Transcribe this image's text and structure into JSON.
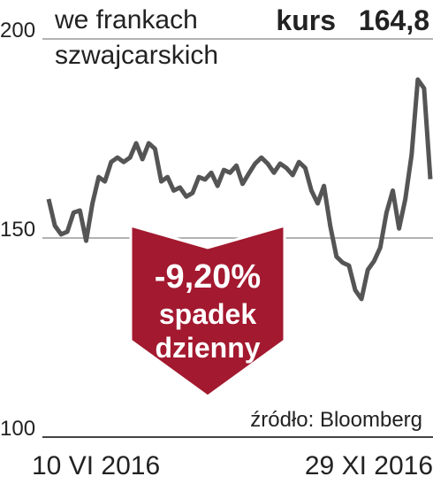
{
  "chart_data": {
    "type": "line",
    "title_lines": [
      "we frankach",
      "szwajcarskich"
    ],
    "price_label": "kurs",
    "price": "164,8",
    "badge": [
      "-9,20%",
      "spadek",
      "dzienny"
    ],
    "source": "źródło: Bloomberg",
    "categories": [
      "10 VI 2016",
      null,
      null,
      null,
      null,
      null,
      null,
      null,
      null,
      null,
      null,
      null,
      null,
      null,
      null,
      null,
      null,
      null,
      null,
      null,
      null,
      null,
      null,
      null,
      null,
      null,
      null,
      null,
      null,
      null,
      null,
      null,
      null,
      null,
      null,
      null,
      null,
      null,
      null,
      null,
      null,
      null,
      null,
      null,
      null,
      null,
      null,
      null,
      null,
      null,
      null,
      null,
      null,
      null,
      null,
      null,
      null,
      null,
      null,
      null,
      null,
      "29 XI 2016"
    ],
    "series": [
      {
        "color": "#555555",
        "values": [
          159.8,
          153.1,
          150.9,
          151.6,
          156.4,
          156.9,
          149.3,
          158.7,
          165.3,
          164.2,
          169.1,
          170.2,
          169.1,
          170.2,
          173.8,
          169.8,
          173.8,
          172.4,
          164.2,
          165.3,
          161.9,
          162.7,
          160.4,
          161.3,
          165.3,
          164.7,
          166.4,
          163.1,
          167.1,
          166.4,
          168.2,
          163.6,
          166.2,
          168.7,
          170.2,
          168.7,
          166.4,
          168.7,
          167.6,
          165.8,
          169.1,
          167.6,
          161.9,
          158.7,
          163.1,
          153.1,
          145.3,
          143.8,
          143.1,
          136.9,
          134.7,
          142.0,
          144.2,
          147.6,
          156.4,
          161.9,
          152.4,
          159.8,
          170.9,
          189.8,
          187.6,
          164.8
        ]
      }
    ],
    "ylim": [
      100,
      200
    ],
    "yticks": [
      100,
      150,
      200
    ],
    "grid": true
  }
}
